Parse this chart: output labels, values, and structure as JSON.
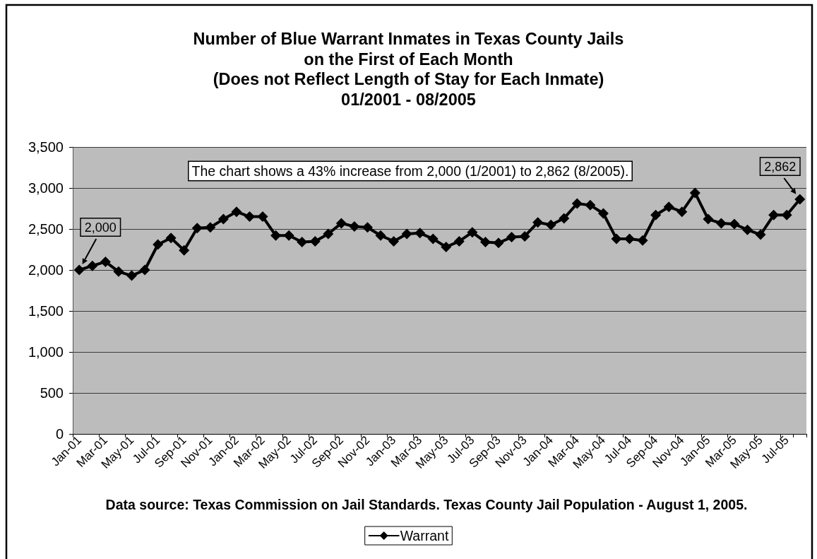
{
  "chart_data": {
    "type": "line",
    "title": "Number of Blue Warrant Inmates in Texas County Jails\non the First of Each Month\n(Does not Reflect Length of Stay for Each Inmate)\n01/2001 - 08/2005",
    "categories": [
      "Jan-01",
      null,
      "Mar-01",
      null,
      "May-01",
      null,
      "Jul-01",
      null,
      "Sep-01",
      null,
      "Nov-01",
      null,
      "Jan-02",
      null,
      "Mar-02",
      null,
      "May-02",
      null,
      "Jul-02",
      null,
      "Sep-02",
      null,
      "Nov-02",
      null,
      "Jan-03",
      null,
      "Mar-03",
      null,
      "May-03",
      null,
      "Jul-03",
      null,
      "Sep-03",
      null,
      "Nov-03",
      null,
      "Jan-04",
      null,
      "Mar-04",
      null,
      "May-04",
      null,
      "Jul-04",
      null,
      "Sep-04",
      null,
      "Nov-04",
      null,
      "Jan-05",
      null,
      "Mar-05",
      null,
      "May-05",
      null,
      "Jul-05",
      null
    ],
    "series": [
      {
        "name": "Warrant",
        "color": "#000000",
        "values": [
          2000,
          2050,
          2100,
          1980,
          1930,
          2000,
          2310,
          2390,
          2240,
          2510,
          2520,
          2620,
          2710,
          2650,
          2650,
          2420,
          2420,
          2340,
          2350,
          2440,
          2570,
          2530,
          2520,
          2420,
          2350,
          2440,
          2450,
          2380,
          2280,
          2350,
          2460,
          2340,
          2330,
          2400,
          2410,
          2580,
          2550,
          2630,
          2810,
          2790,
          2690,
          2380,
          2380,
          2360,
          2670,
          2770,
          2710,
          2940,
          2620,
          2570,
          2560,
          2490,
          2430,
          2670,
          2670,
          2862
        ],
        "value_labels": [
          "2,000",
          null,
          null,
          null,
          null,
          null,
          null,
          null,
          null,
          null,
          null,
          null,
          null,
          null,
          null,
          null,
          null,
          null,
          null,
          null,
          null,
          null,
          null,
          null,
          null,
          null,
          null,
          null,
          null,
          null,
          null,
          null,
          null,
          null,
          null,
          null,
          null,
          null,
          null,
          null,
          null,
          null,
          null,
          null,
          null,
          null,
          null,
          null,
          null,
          null,
          null,
          null,
          null,
          null,
          null,
          "2,862"
        ]
      }
    ],
    "ylim": [
      0,
      3500
    ],
    "yticks": [
      0,
      {
        "value": 500,
        "label": "500"
      },
      {
        "value": 1000,
        "label": "1,000"
      },
      {
        "value": 1500,
        "label": "1,500"
      },
      {
        "value": 2000,
        "label": "2,000"
      },
      {
        "value": 2500,
        "label": "2,500"
      },
      {
        "value": 3000,
        "label": "3,000"
      },
      {
        "value": 3500,
        "label": "3,500"
      }
    ],
    "grid": "y",
    "legend": "bottom",
    "marker": "diamond",
    "line_style": "solid",
    "annotations": [
      "The chart shows a 43% increase from 2,000 (1/2001) to 2,862 (8/2005).",
      "Data source: Texas Commission on Jail Standards. Texas County Jail Population - August 1, 2005."
    ]
  }
}
